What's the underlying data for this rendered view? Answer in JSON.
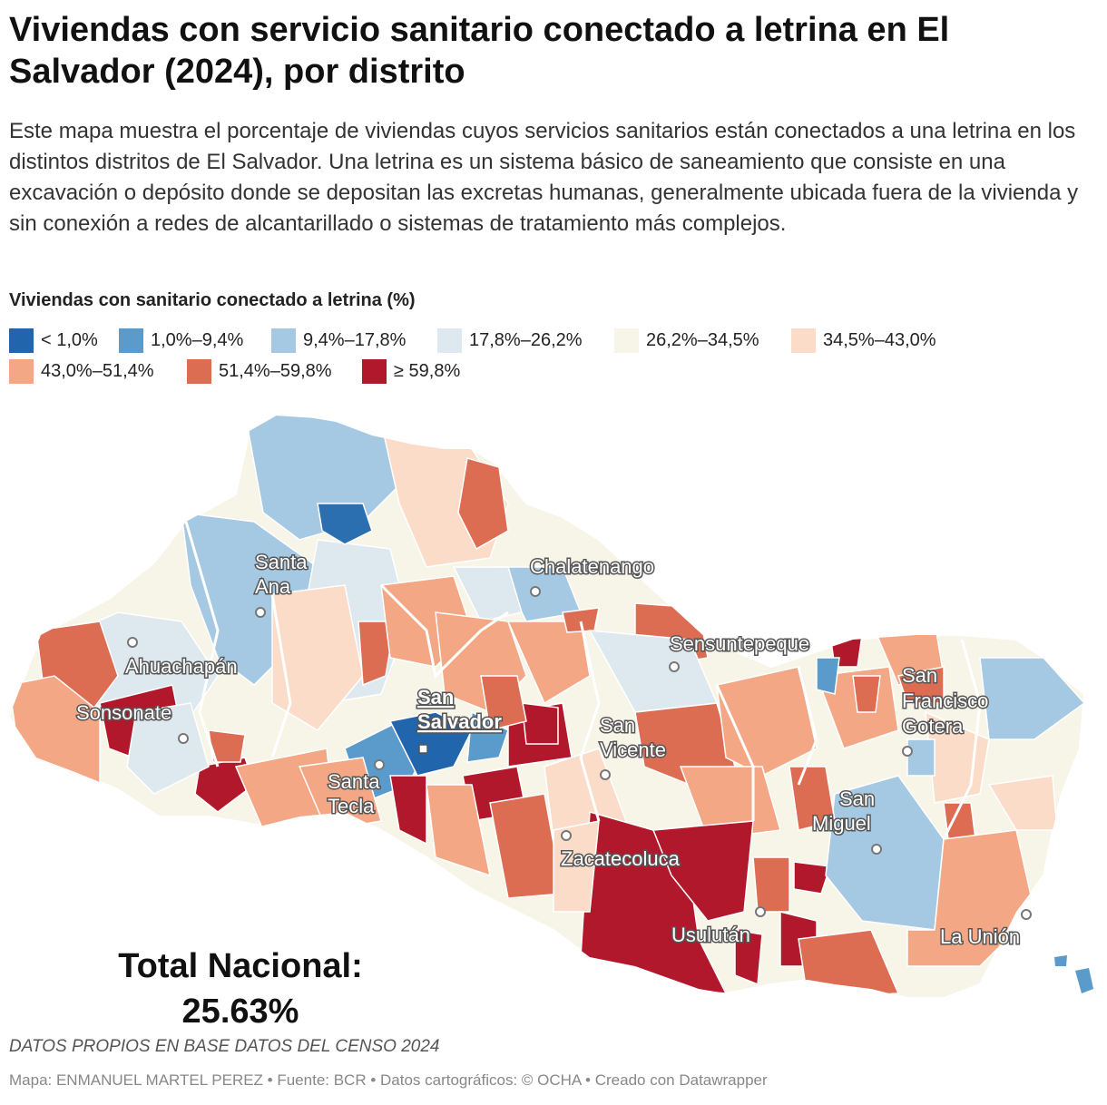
{
  "title": "Viviendas con servicio sanitario conectado a letrina en El Salvador (2024), por distrito",
  "description": "Este mapa muestra el porcentaje de viviendas cuyos servicios sanitarios están conectados a una letrina en los distintos distritos de El Salvador. Una letrina es un sistema básico de saneamiento que consiste en una excavación o depósito donde se depositan las excretas humanas, generalmente ubicada fuera de la vivienda y sin conexión a redes de alcantarillado o sistemas de tratamiento más complejos.",
  "legend": {
    "title": "Viviendas con sanitario conectado a letrina (%)",
    "items": [
      {
        "label": "< 1,0%",
        "color": "#2166ac"
      },
      {
        "label": "1,0%–9,4%",
        "color": "#5b9bcb"
      },
      {
        "label": "9,4%–17,8%",
        "color": "#a6c9e3"
      },
      {
        "label": "17,8%–26,2%",
        "color": "#dde8ef"
      },
      {
        "label": "26,2%–34,5%",
        "color": "#f7f4e8"
      },
      {
        "label": "34,5%–43,0%",
        "color": "#fbdcc9"
      },
      {
        "label": "43,0%–51,4%",
        "color": "#f4a784"
      },
      {
        "label": "51,4%–59,8%",
        "color": "#dd6d52"
      },
      {
        "label": "≥ 59,8%",
        "color": "#b2182b"
      }
    ]
  },
  "cities": [
    {
      "lines": [
        "Santa",
        "Ana"
      ],
      "main": false
    },
    {
      "lines": [
        "Chalatenango"
      ],
      "main": false
    },
    {
      "lines": [
        "Ahuachapán"
      ],
      "main": false
    },
    {
      "lines": [
        "Sensuntepeque"
      ],
      "main": false
    },
    {
      "lines": [
        "San",
        "Salvador"
      ],
      "main": true
    },
    {
      "lines": [
        "Sonsonate"
      ],
      "main": false
    },
    {
      "lines": [
        "San",
        "Francisco",
        "Gotera"
      ],
      "main": false
    },
    {
      "lines": [
        "San",
        "Vicente"
      ],
      "main": false
    },
    {
      "lines": [
        "Santa",
        "Tecla"
      ],
      "main": false
    },
    {
      "lines": [
        "San",
        "Miguel"
      ],
      "main": false
    },
    {
      "lines": [
        "Zacatecoluca"
      ],
      "main": false
    },
    {
      "lines": [
        "Usulután"
      ],
      "main": false
    },
    {
      "lines": [
        "La Unión"
      ],
      "main": false
    }
  ],
  "total": {
    "label": "Total Nacional:",
    "value": "25.63%"
  },
  "source": "DATOS PROPIOS EN BASE DATOS DEL CENSO 2024",
  "footer": "Mapa: ENMANUEL MARTEL PEREZ • Fuente: BCR • Datos cartográficos: © OCHA  • Creado con Datawrapper"
}
